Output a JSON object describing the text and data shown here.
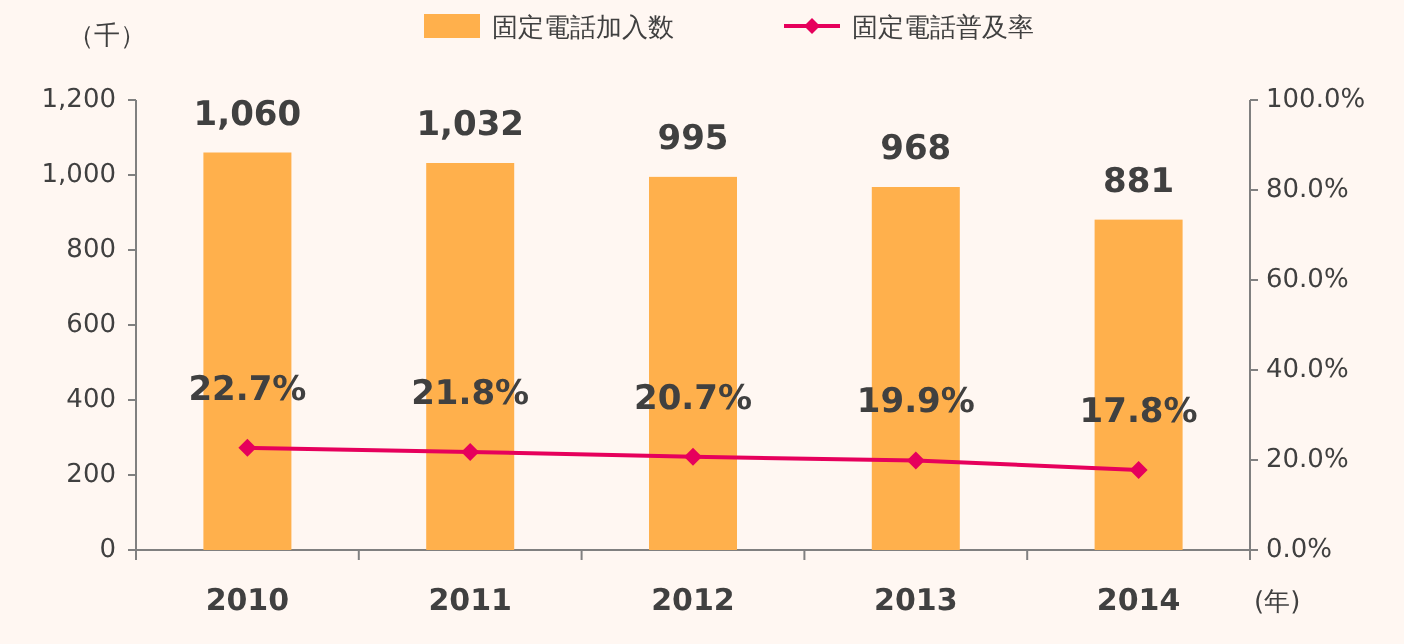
{
  "chart_data": {
    "type": "bar",
    "categories": [
      "2010",
      "2011",
      "2012",
      "2013",
      "2014"
    ],
    "ylabel": "（千）",
    "xlabel": "(年)",
    "series": [
      {
        "name": "固定電話加入数",
        "type": "bar",
        "color": "#ffb04c",
        "values": [
          1060,
          1032,
          995,
          968,
          881
        ],
        "value_labels": [
          "1,060",
          "1,032",
          "995",
          "968",
          "881"
        ]
      },
      {
        "name": "固定電話普及率",
        "type": "line",
        "axis": "y2",
        "color": "#e6005c",
        "values": [
          22.7,
          21.8,
          20.7,
          19.9,
          17.8
        ],
        "value_labels": [
          "22.7%",
          "21.8%",
          "20.7%",
          "19.9%",
          "17.8%"
        ]
      }
    ],
    "ylim": [
      0,
      1200
    ],
    "yticks": [
      0,
      200,
      400,
      600,
      800,
      {
        "value": 1000,
        "label": "1,000"
      },
      {
        "value": 1200,
        "label": "1,200"
      }
    ],
    "y2lim": [
      0,
      100
    ],
    "y2ticks": [
      {
        "value": 0,
        "label": "0.0%"
      },
      {
        "value": 20,
        "label": "20.0%"
      },
      {
        "value": 40,
        "label": "40.0%"
      },
      {
        "value": 60,
        "label": "60.0%"
      },
      {
        "value": 80,
        "label": "80.0%"
      },
      {
        "value": 100,
        "label": "100.0%"
      }
    ],
    "marker": "diamond",
    "line_style": "solid",
    "legend": "top",
    "grid": false
  }
}
